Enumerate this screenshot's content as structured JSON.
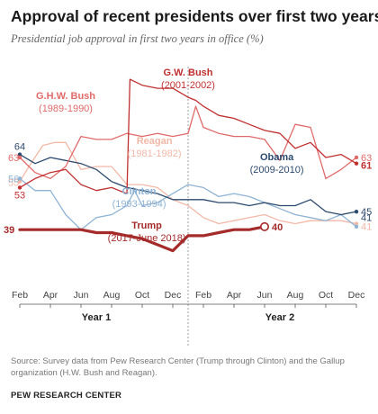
{
  "header": {
    "title": "Approval of recent presidents over first two years",
    "subtitle": "Presidential job approval in first two years in office (%)"
  },
  "footer": {
    "source": "Source: Survey data from Pew Research Center (Trump through Clinton) and the Gallup organization (H.W. Bush and Reagan).",
    "brand": "PEW RESEARCH CENTER"
  },
  "colors": {
    "trump": "#a52a2a",
    "ghw_bush": "#e06a6a",
    "gw_bush": "#c03030",
    "reagan": "#f2b8a8",
    "obama": "#2c4a6e",
    "clinton": "#8fb3d4",
    "axis": "#888888"
  },
  "chart_data": {
    "type": "line",
    "title": "Approval of recent presidents over first two years",
    "x_unit": "month of term (1 = Feb of year 1, 24 = Jan of year 3)",
    "x_ticks": [
      {
        "x": 1,
        "label": "Feb"
      },
      {
        "x": 3,
        "label": "Apr"
      },
      {
        "x": 5,
        "label": "Jun"
      },
      {
        "x": 7,
        "label": "Aug"
      },
      {
        "x": 9,
        "label": "Oct"
      },
      {
        "x": 11,
        "label": "Dec"
      },
      {
        "x": 13,
        "label": "Feb"
      },
      {
        "x": 15,
        "label": "Apr"
      },
      {
        "x": 17,
        "label": "Jun"
      },
      {
        "x": 19,
        "label": "Aug"
      },
      {
        "x": 21,
        "label": "Oct"
      },
      {
        "x": 23,
        "label": "Dec"
      }
    ],
    "year_labels": [
      {
        "x": 6,
        "label": "Year 1"
      },
      {
        "x": 18,
        "label": "Year 2"
      }
    ],
    "xlim": [
      1,
      23
    ],
    "ylim": [
      25,
      95
    ],
    "grid": false,
    "series": [
      {
        "key": "reagan",
        "name": "Reagan",
        "period": "(1981-1982)",
        "start_label": "55",
        "end_label": "41",
        "points": [
          [
            1,
            55
          ],
          [
            1.6,
            60
          ],
          [
            2.5,
            67
          ],
          [
            3.3,
            68
          ],
          [
            4,
            68
          ],
          [
            5,
            59
          ],
          [
            6,
            60
          ],
          [
            7,
            60
          ],
          [
            8,
            54
          ],
          [
            9,
            54
          ],
          [
            10,
            53
          ],
          [
            11,
            49
          ],
          [
            12,
            47
          ],
          [
            13,
            43
          ],
          [
            14,
            41
          ],
          [
            15,
            42
          ],
          [
            16,
            43
          ],
          [
            17,
            44
          ],
          [
            18,
            42
          ],
          [
            19,
            41
          ],
          [
            20,
            42
          ],
          [
            21,
            42
          ],
          [
            22,
            42
          ],
          [
            23,
            41
          ]
        ]
      },
      {
        "key": "clinton",
        "name": "Clinton",
        "period": "(1993-1994)",
        "start_label": "56",
        "points": [
          [
            1,
            56
          ],
          [
            2,
            52
          ],
          [
            3,
            52
          ],
          [
            4,
            44
          ],
          [
            5,
            39
          ],
          [
            6,
            43
          ],
          [
            7,
            44
          ],
          [
            8,
            47
          ],
          [
            8.5,
            52
          ],
          [
            9,
            47
          ],
          [
            10,
            48
          ],
          [
            11,
            51
          ],
          [
            12,
            54
          ],
          [
            13,
            53
          ],
          [
            14,
            50
          ],
          [
            15,
            51
          ],
          [
            16,
            50
          ],
          [
            17,
            48
          ],
          [
            18,
            46
          ],
          [
            19,
            44
          ],
          [
            20,
            43
          ],
          [
            21,
            42
          ],
          [
            22,
            44
          ],
          [
            23,
            40
          ]
        ]
      },
      {
        "key": "obama",
        "name": "Obama",
        "period": "(2009-2010)",
        "start_label": "64",
        "end_label": "45",
        "points": [
          [
            1,
            64
          ],
          [
            2,
            61
          ],
          [
            3,
            63
          ],
          [
            4,
            62
          ],
          [
            5,
            61
          ],
          [
            6,
            59
          ],
          [
            7,
            55
          ],
          [
            8,
            53
          ],
          [
            9,
            52
          ],
          [
            10,
            51
          ],
          [
            11,
            49
          ],
          [
            12,
            49
          ],
          [
            13,
            49
          ],
          [
            14,
            48
          ],
          [
            15,
            48
          ],
          [
            16,
            47
          ],
          [
            17,
            48
          ],
          [
            18,
            47
          ],
          [
            19,
            47
          ],
          [
            20,
            49
          ],
          [
            21,
            45
          ],
          [
            22,
            44
          ],
          [
            23,
            45
          ]
        ]
      },
      {
        "key": "ghw_bush",
        "name": "G.H.W. Bush",
        "period": "(1989-1990)",
        "start_label": "63",
        "end_label": "63",
        "points": [
          [
            1,
            63
          ],
          [
            2,
            58
          ],
          [
            3,
            56
          ],
          [
            4,
            60
          ],
          [
            5,
            70
          ],
          [
            6,
            69
          ],
          [
            7,
            69
          ],
          [
            8,
            71
          ],
          [
            9,
            70
          ],
          [
            10,
            71
          ],
          [
            11,
            70
          ],
          [
            12,
            71
          ],
          [
            12.5,
            80
          ],
          [
            13,
            73
          ],
          [
            14,
            71
          ],
          [
            15,
            70
          ],
          [
            16,
            70
          ],
          [
            17,
            69
          ],
          [
            18,
            62
          ],
          [
            19,
            74
          ],
          [
            20,
            73
          ],
          [
            21,
            56
          ],
          [
            22,
            59
          ],
          [
            23,
            63
          ]
        ]
      },
      {
        "key": "gw_bush",
        "name": "G.W. Bush",
        "period": "(2001-2002)",
        "start_label": "53",
        "end_label": "61",
        "points": [
          [
            1,
            53
          ],
          [
            2,
            56
          ],
          [
            3,
            58
          ],
          [
            4,
            59
          ],
          [
            5,
            54
          ],
          [
            6,
            52
          ],
          [
            7,
            53
          ],
          [
            8,
            51
          ],
          [
            8.2,
            89
          ],
          [
            9,
            87
          ],
          [
            10,
            86
          ],
          [
            11,
            86
          ],
          [
            12,
            83
          ],
          [
            12.5,
            82
          ],
          [
            13,
            80
          ],
          [
            14,
            77
          ],
          [
            15,
            76
          ],
          [
            16,
            74
          ],
          [
            17,
            72
          ],
          [
            18,
            71
          ],
          [
            19,
            66
          ],
          [
            20,
            68
          ],
          [
            21,
            63
          ],
          [
            22,
            64
          ],
          [
            23,
            61
          ]
        ]
      },
      {
        "key": "trump",
        "name": "Trump",
        "period": "(2017-June 2018)",
        "start_label": "39",
        "end_label": "40",
        "points": [
          [
            1,
            39
          ],
          [
            2,
            39
          ],
          [
            3,
            39
          ],
          [
            4,
            39
          ],
          [
            5,
            39
          ],
          [
            6,
            38
          ],
          [
            7,
            38
          ],
          [
            8,
            37
          ],
          [
            9,
            36
          ],
          [
            10,
            34
          ],
          [
            11,
            32
          ],
          [
            12,
            37
          ],
          [
            13,
            37
          ],
          [
            14,
            38
          ],
          [
            15,
            39
          ],
          [
            16,
            39
          ],
          [
            17,
            40
          ]
        ]
      }
    ]
  }
}
